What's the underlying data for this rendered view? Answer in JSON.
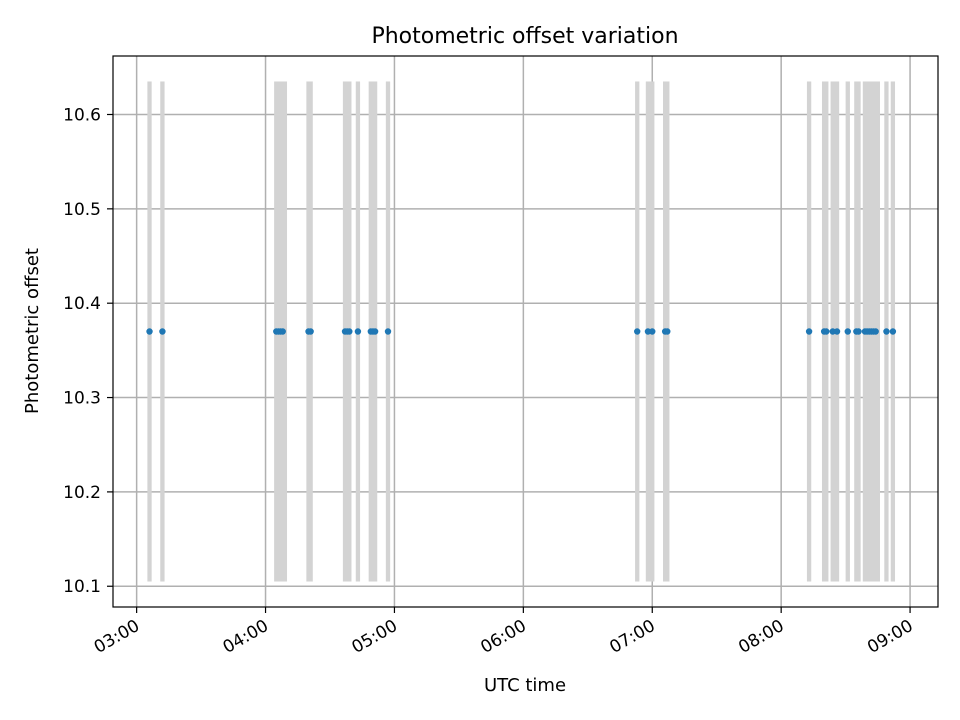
{
  "chart_data": {
    "type": "scatter",
    "title": "Photometric offset variation",
    "xlabel": "UTC time",
    "ylabel": "Photometric offset",
    "x_unit": "UTC time (HH:MM)",
    "xlim": [
      "02:49",
      "09:13"
    ],
    "ylim": [
      10.078,
      10.662
    ],
    "x_ticks": [
      "03:00",
      "04:00",
      "05:00",
      "06:00",
      "07:00",
      "08:00",
      "09:00"
    ],
    "y_ticks": [
      "10.1",
      "10.2",
      "10.3",
      "10.4",
      "10.5",
      "10.6"
    ],
    "grid": true,
    "point_color": "#1f77b4",
    "band_color": "#d3d3d3",
    "band_range": [
      10.105,
      10.635
    ],
    "bands": [
      [
        "03:05",
        "03:07"
      ],
      [
        "03:11",
        "03:13"
      ],
      [
        "04:04",
        "04:10"
      ],
      [
        "04:19",
        "04:22"
      ],
      [
        "04:36",
        "04:40"
      ],
      [
        "04:42",
        "04:44"
      ],
      [
        "04:48",
        "04:52"
      ],
      [
        "04:56",
        "04:58"
      ],
      [
        "06:52",
        "06:54"
      ],
      [
        "06:57",
        "07:01"
      ],
      [
        "07:05",
        "07:08"
      ],
      [
        "08:12",
        "08:14"
      ],
      [
        "08:19",
        "08:22"
      ],
      [
        "08:23",
        "08:27"
      ],
      [
        "08:30",
        "08:32"
      ],
      [
        "08:34",
        "08:37"
      ],
      [
        "08:38",
        "08:46"
      ],
      [
        "08:48",
        "08:50"
      ],
      [
        "08:51",
        "08:53"
      ]
    ],
    "points": [
      {
        "x": "03:06",
        "y": 10.37
      },
      {
        "x": "03:12",
        "y": 10.37
      },
      {
        "x": "04:05",
        "y": 10.37
      },
      {
        "x": "04:06",
        "y": 10.37
      },
      {
        "x": "04:07",
        "y": 10.37
      },
      {
        "x": "04:08",
        "y": 10.37
      },
      {
        "x": "04:20",
        "y": 10.37
      },
      {
        "x": "04:21",
        "y": 10.37
      },
      {
        "x": "04:37",
        "y": 10.37
      },
      {
        "x": "04:38",
        "y": 10.37
      },
      {
        "x": "04:39",
        "y": 10.37
      },
      {
        "x": "04:43",
        "y": 10.37
      },
      {
        "x": "04:49",
        "y": 10.37
      },
      {
        "x": "04:50",
        "y": 10.37
      },
      {
        "x": "04:51",
        "y": 10.37
      },
      {
        "x": "04:57",
        "y": 10.37
      },
      {
        "x": "06:53",
        "y": 10.37
      },
      {
        "x": "06:58",
        "y": 10.37
      },
      {
        "x": "07:00",
        "y": 10.37
      },
      {
        "x": "07:06",
        "y": 10.37
      },
      {
        "x": "07:07",
        "y": 10.37
      },
      {
        "x": "08:13",
        "y": 10.37
      },
      {
        "x": "08:20",
        "y": 10.37
      },
      {
        "x": "08:21",
        "y": 10.37
      },
      {
        "x": "08:24",
        "y": 10.37
      },
      {
        "x": "08:26",
        "y": 10.37
      },
      {
        "x": "08:31",
        "y": 10.37
      },
      {
        "x": "08:35",
        "y": 10.37
      },
      {
        "x": "08:36",
        "y": 10.37
      },
      {
        "x": "08:39",
        "y": 10.37
      },
      {
        "x": "08:40",
        "y": 10.37
      },
      {
        "x": "08:41",
        "y": 10.37
      },
      {
        "x": "08:42",
        "y": 10.37
      },
      {
        "x": "08:43",
        "y": 10.37
      },
      {
        "x": "08:44",
        "y": 10.37
      },
      {
        "x": "08:49",
        "y": 10.37
      },
      {
        "x": "08:52",
        "y": 10.37
      }
    ]
  }
}
